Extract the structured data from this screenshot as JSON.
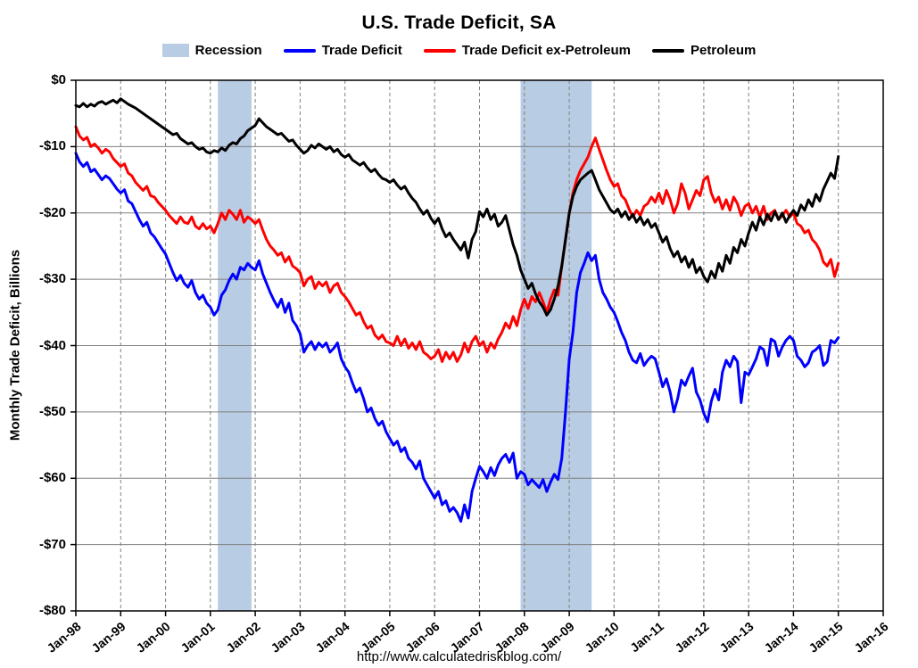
{
  "footer": {
    "url": "http://www.calculatedriskblog.com/"
  },
  "chart_data": {
    "type": "line",
    "title": "U.S. Trade Deficit, SA",
    "xlabel": "",
    "ylabel": "Monthly Trade Deficit, Billions",
    "ylim": [
      -80,
      0
    ],
    "grid": "on",
    "legend_position": "top",
    "grid_color": "#808080",
    "band_color": "#b8cce4",
    "months_total": 216,
    "x_start_label": "Jan-98",
    "x_end_label": "Jan-16",
    "x_tick_labels": [
      "Jan-98",
      "Jan-99",
      "Jan-00",
      "Jan-01",
      "Jan-02",
      "Jan-03",
      "Jan-04",
      "Jan-05",
      "Jan-06",
      "Jan-07",
      "Jan-08",
      "Jan-09",
      "Jan-10",
      "Jan-11",
      "Jan-12",
      "Jan-13",
      "Jan-14",
      "Jan-15",
      "Jan-16"
    ],
    "y_tick_values": [
      0,
      -10,
      -20,
      -30,
      -40,
      -50,
      -60,
      -70,
      -80
    ],
    "y_tick_labels": [
      "$0",
      "-$10",
      "-$20",
      "-$30",
      "-$40",
      "-$50",
      "-$60",
      "-$70",
      "-$80"
    ],
    "legend": [
      {
        "label": "Recession",
        "color": "#b8cce4",
        "type": "band"
      },
      {
        "label": "Trade Deficit",
        "color": "#0000ff",
        "type": "line"
      },
      {
        "label": "Trade Deficit ex-Petroleum",
        "color": "#ff0000",
        "type": "line"
      },
      {
        "label": "Petroleum",
        "color": "#000000",
        "type": "line"
      }
    ],
    "recession_bands": [
      {
        "label": "2001 recession",
        "start_month_index": 38,
        "end_month_index": 47
      },
      {
        "label": "2007-2009 recession",
        "start_month_index": 119,
        "end_month_index": 138
      }
    ],
    "series": [
      {
        "name": "Trade Deficit",
        "color": "#0000ff",
        "start_month_index": 0,
        "values": [
          -11.0,
          -12.3,
          -13.0,
          -12.4,
          -13.8,
          -13.4,
          -14.2,
          -15.0,
          -14.4,
          -14.8,
          -15.6,
          -16.4,
          -17.0,
          -16.5,
          -18.2,
          -18.6,
          -19.8,
          -21.0,
          -22.0,
          -21.4,
          -23.0,
          -23.6,
          -24.5,
          -25.4,
          -26.2,
          -27.6,
          -29.0,
          -30.2,
          -29.4,
          -30.6,
          -31.2,
          -30.2,
          -32.0,
          -33.0,
          -32.4,
          -33.6,
          -34.2,
          -35.4,
          -34.6,
          -32.4,
          -31.6,
          -30.2,
          -29.2,
          -30.0,
          -28.2,
          -28.6,
          -27.6,
          -28.2,
          -28.6,
          -27.2,
          -29.2,
          -30.6,
          -32.0,
          -33.2,
          -34.2,
          -33.0,
          -35.0,
          -33.6,
          -36.2,
          -37.0,
          -38.2,
          -41.0,
          -40.0,
          -39.4,
          -40.6,
          -39.6,
          -40.2,
          -39.6,
          -41.0,
          -40.4,
          -39.6,
          -42.0,
          -43.2,
          -44.0,
          -45.6,
          -47.0,
          -46.4,
          -48.0,
          -50.0,
          -49.4,
          -51.0,
          -52.0,
          -51.4,
          -53.0,
          -54.0,
          -55.0,
          -54.4,
          -56.0,
          -55.4,
          -57.0,
          -57.6,
          -58.6,
          -57.4,
          -60.0,
          -61.0,
          -62.0,
          -63.0,
          -62.0,
          -64.0,
          -63.4,
          -65.0,
          -64.4,
          -65.2,
          -66.5,
          -64.0,
          -66.0,
          -62.0,
          -60.0,
          -58.2,
          -59.0,
          -60.0,
          -58.4,
          -59.6,
          -58.0,
          -57.0,
          -56.4,
          -57.6,
          -56.2,
          -60.0,
          -59.0,
          -59.4,
          -61.0,
          -60.2,
          -60.8,
          -61.4,
          -60.2,
          -62.0,
          -60.6,
          -59.4,
          -60.2,
          -57.0,
          -50.0,
          -42.0,
          -38.0,
          -32.0,
          -29.0,
          -27.6,
          -26.0,
          -27.2,
          -26.4,
          -30.0,
          -32.0,
          -33.0,
          -34.2,
          -35.0,
          -36.4,
          -38.0,
          -39.2,
          -41.0,
          -42.2,
          -42.6,
          -41.2,
          -43.0,
          -42.2,
          -41.6,
          -42.0,
          -44.0,
          -46.2,
          -45.0,
          -47.0,
          -50.0,
          -48.0,
          -45.2,
          -46.0,
          -44.6,
          -43.4,
          -47.0,
          -48.2,
          -50.2,
          -51.5,
          -48.4,
          -46.6,
          -48.2,
          -44.0,
          -42.2,
          -43.2,
          -41.6,
          -42.4,
          -48.6,
          -44.0,
          -44.4,
          -43.2,
          -42.0,
          -40.2,
          -40.6,
          -43.0,
          -39.0,
          -39.4,
          -41.6,
          -40.2,
          -39.2,
          -38.6,
          -39.2,
          -41.6,
          -42.2,
          -43.2,
          -42.6,
          -41.0,
          -40.6,
          -40.0,
          -43.0,
          -42.4,
          -39.2,
          -39.6,
          -38.8
        ]
      },
      {
        "name": "Trade Deficit ex-Petroleum",
        "color": "#ff0000",
        "start_month_index": 0,
        "values": [
          -7.0,
          -8.4,
          -9.0,
          -8.6,
          -10.0,
          -9.6,
          -10.2,
          -11.0,
          -10.4,
          -10.8,
          -11.8,
          -12.4,
          -13.0,
          -12.6,
          -14.0,
          -14.4,
          -15.4,
          -16.0,
          -16.6,
          -16.0,
          -17.4,
          -17.6,
          -18.4,
          -19.0,
          -19.6,
          -20.4,
          -21.0,
          -21.6,
          -20.6,
          -21.4,
          -21.6,
          -20.6,
          -22.0,
          -22.4,
          -21.6,
          -22.4,
          -22.0,
          -23.0,
          -21.6,
          -20.0,
          -21.0,
          -19.6,
          -20.2,
          -21.0,
          -19.6,
          -21.4,
          -20.6,
          -21.0,
          -21.6,
          -21.0,
          -22.6,
          -24.0,
          -25.0,
          -25.6,
          -26.4,
          -26.0,
          -27.4,
          -26.6,
          -28.0,
          -28.4,
          -29.0,
          -31.0,
          -30.0,
          -29.6,
          -31.4,
          -30.4,
          -31.0,
          -30.4,
          -32.0,
          -31.0,
          -30.6,
          -32.0,
          -32.6,
          -33.4,
          -34.4,
          -35.4,
          -35.0,
          -36.4,
          -37.4,
          -37.0,
          -38.4,
          -39.0,
          -38.4,
          -39.4,
          -39.6,
          -40.0,
          -38.6,
          -40.0,
          -39.0,
          -40.4,
          -39.6,
          -40.6,
          -39.4,
          -41.0,
          -41.4,
          -42.0,
          -41.6,
          -40.6,
          -42.4,
          -41.0,
          -42.0,
          -41.0,
          -42.4,
          -41.4,
          -39.6,
          -41.0,
          -39.4,
          -38.6,
          -40.0,
          -39.4,
          -41.0,
          -39.6,
          -40.4,
          -39.0,
          -38.0,
          -36.6,
          -37.4,
          -35.6,
          -37.0,
          -34.6,
          -33.0,
          -34.4,
          -32.6,
          -33.4,
          -32.0,
          -33.4,
          -35.0,
          -33.0,
          -31.6,
          -32.4,
          -28.0,
          -24.0,
          -20.0,
          -17.0,
          -15.0,
          -13.6,
          -12.6,
          -11.6,
          -10.0,
          -8.7,
          -10.4,
          -12.0,
          -13.6,
          -15.0,
          -16.0,
          -15.6,
          -17.4,
          -18.0,
          -19.4,
          -20.6,
          -19.6,
          -20.4,
          -19.0,
          -18.6,
          -17.6,
          -18.4,
          -17.0,
          -18.6,
          -16.6,
          -18.0,
          -20.0,
          -18.6,
          -15.6,
          -17.0,
          -19.4,
          -18.0,
          -16.6,
          -17.4,
          -15.0,
          -14.5,
          -17.0,
          -18.4,
          -17.6,
          -19.4,
          -18.0,
          -19.6,
          -17.6,
          -18.6,
          -20.4,
          -19.0,
          -18.6,
          -20.0,
          -19.0,
          -20.6,
          -19.0,
          -21.0,
          -20.0,
          -19.6,
          -21.0,
          -20.4,
          -19.6,
          -20.6,
          -20.0,
          -21.6,
          -22.0,
          -23.0,
          -22.6,
          -24.0,
          -24.6,
          -25.6,
          -27.4,
          -28.0,
          -27.0,
          -29.6,
          -27.6
        ]
      },
      {
        "name": "Petroleum",
        "color": "#000000",
        "start_month_index": 0,
        "values": [
          -3.8,
          -4.0,
          -3.5,
          -4.0,
          -3.6,
          -3.9,
          -3.4,
          -3.2,
          -3.6,
          -3.3,
          -3.0,
          -3.4,
          -2.8,
          -3.2,
          -3.6,
          -3.9,
          -4.2,
          -4.6,
          -5.0,
          -5.4,
          -5.8,
          -6.2,
          -6.6,
          -7.0,
          -7.4,
          -7.8,
          -8.2,
          -8.0,
          -8.8,
          -9.2,
          -9.6,
          -9.4,
          -10.0,
          -10.4,
          -10.2,
          -10.8,
          -11.0,
          -10.6,
          -10.8,
          -10.2,
          -10.6,
          -9.8,
          -9.4,
          -9.6,
          -8.8,
          -8.4,
          -7.6,
          -7.2,
          -6.8,
          -5.8,
          -6.4,
          -7.0,
          -7.4,
          -7.8,
          -8.2,
          -8.0,
          -8.6,
          -9.2,
          -9.0,
          -9.8,
          -10.4,
          -11.0,
          -10.6,
          -9.8,
          -10.2,
          -9.6,
          -10.0,
          -10.4,
          -10.0,
          -10.8,
          -10.4,
          -11.2,
          -11.6,
          -11.2,
          -12.0,
          -12.4,
          -12.8,
          -12.4,
          -13.2,
          -13.8,
          -13.4,
          -14.2,
          -14.8,
          -15.0,
          -15.4,
          -15.0,
          -15.8,
          -16.4,
          -16.0,
          -17.0,
          -17.8,
          -18.4,
          -19.4,
          -20.2,
          -19.6,
          -20.8,
          -21.6,
          -20.8,
          -22.4,
          -23.6,
          -23.0,
          -24.0,
          -24.8,
          -25.6,
          -24.4,
          -26.8,
          -24.0,
          -22.8,
          -19.8,
          -20.6,
          -19.4,
          -21.0,
          -20.2,
          -22.0,
          -21.4,
          -20.4,
          -22.6,
          -24.8,
          -26.4,
          -28.6,
          -30.0,
          -31.4,
          -30.6,
          -32.2,
          -33.4,
          -34.2,
          -35.4,
          -34.6,
          -33.0,
          -31.0,
          -28.0,
          -24.0,
          -20.0,
          -17.5,
          -16.0,
          -15.0,
          -14.5,
          -14.0,
          -13.6,
          -15.0,
          -16.5,
          -17.5,
          -18.5,
          -19.5,
          -20.0,
          -19.4,
          -20.6,
          -19.8,
          -21.0,
          -20.2,
          -21.4,
          -20.6,
          -21.8,
          -21.0,
          -22.2,
          -21.6,
          -23.0,
          -24.4,
          -23.6,
          -25.4,
          -26.6,
          -25.8,
          -27.4,
          -26.6,
          -28.2,
          -27.0,
          -29.0,
          -28.2,
          -29.6,
          -30.4,
          -28.8,
          -29.8,
          -27.6,
          -28.8,
          -26.4,
          -27.6,
          -25.2,
          -26.0,
          -24.0,
          -25.0,
          -23.0,
          -21.4,
          -22.6,
          -20.6,
          -21.8,
          -20.2,
          -21.2,
          -19.8,
          -21.0,
          -20.0,
          -21.4,
          -20.4,
          -19.6,
          -20.4,
          -18.8,
          -19.6,
          -18.0,
          -19.0,
          -17.2,
          -18.2,
          -16.4,
          -15.2,
          -14.0,
          -14.8,
          -11.5
        ]
      }
    ]
  }
}
